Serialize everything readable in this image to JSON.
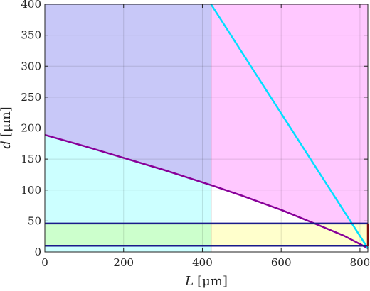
{
  "chart_data": {
    "type": "area",
    "xlabel_var": "L",
    "xlabel_unit": "[μm]",
    "ylabel_var": "d",
    "ylabel_unit": "[μm]",
    "xlim": [
      0,
      820
    ],
    "ylim": [
      0,
      400
    ],
    "xticks": [
      0,
      200,
      400,
      600,
      800
    ],
    "yticks": [
      0,
      50,
      100,
      150,
      200,
      250,
      300,
      350,
      400
    ],
    "grid": true,
    "regions": [
      {
        "color": "#c8c8f8",
        "x0": 0,
        "x1": 422,
        "y0": 0,
        "y1": 400
      },
      {
        "color": "#ffc8ff",
        "x0": 422,
        "x1": 820,
        "y0": 0,
        "y1": 400
      },
      {
        "color": "#ccffff",
        "x0": 0,
        "x1": 422,
        "y0": 0,
        "y1": "purple"
      },
      {
        "color": "#ffffff",
        "x0": 422,
        "x1": 820,
        "y0": 0,
        "y1": "purple"
      },
      {
        "color": "#ccffcc",
        "x0": 0,
        "x1": 422,
        "y0": 10,
        "y1": 46
      },
      {
        "color": "#ffffcc",
        "x0": 422,
        "x1": 820,
        "y0": 10,
        "y1": 46
      }
    ],
    "series": [
      {
        "color": "#880099",
        "x": [
          0,
          100,
          200,
          300,
          422,
          500,
          600,
          700,
          760,
          820
        ],
        "y": [
          189,
          171,
          152,
          133,
          108,
          91,
          68,
          42,
          26,
          6
        ]
      },
      {
        "color": "#00e0ff",
        "x": [
          422,
          820
        ],
        "y": [
          400,
          6
        ]
      },
      {
        "color": "#1a1a8a",
        "x": [
          0,
          820
        ],
        "y": [
          46,
          46
        ]
      },
      {
        "color": "#1a1a8a",
        "x": [
          0,
          820
        ],
        "y": [
          10,
          10
        ]
      },
      {
        "color": "#cc0000",
        "x": [
          820,
          820
        ],
        "y": [
          10,
          46
        ]
      },
      {
        "color": "#333333",
        "x": [
          422,
          422
        ],
        "y": [
          0,
          400
        ]
      }
    ]
  }
}
